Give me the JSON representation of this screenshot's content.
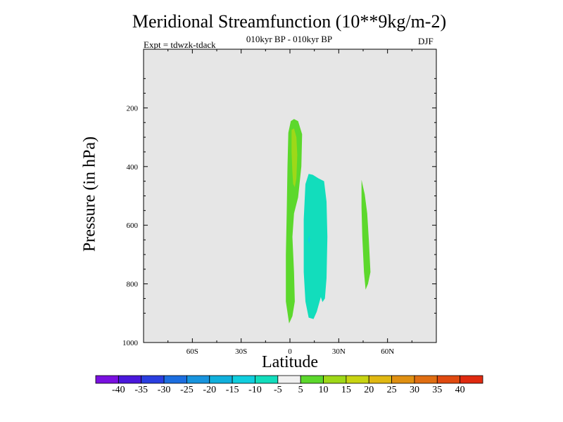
{
  "header": {
    "title": "Meridional Streamfunction (10**9kg/m-2)",
    "subtitle": "010kyr BP - 010kyr BP",
    "expt": "Expt = tdwzk-tdack",
    "season": "DJF"
  },
  "colors": {
    "background_panel": "#e6e6e6",
    "neutral": "#ffffff"
  },
  "chart_data": {
    "type": "contour",
    "title": "Meridional Streamfunction (10**9kg/m-2)",
    "subtitle": "010kyr BP - 010kyr BP",
    "xlabel": "Latitude",
    "ylabel": "Pressure (in hPa)",
    "xlim": [
      -90,
      90
    ],
    "ylim": [
      0,
      1000
    ],
    "y_inverted": true,
    "x_ticks": [
      {
        "value": -60,
        "label": "60S"
      },
      {
        "value": -30,
        "label": "30S"
      },
      {
        "value": 0,
        "label": "0"
      },
      {
        "value": 30,
        "label": "30N"
      },
      {
        "value": 60,
        "label": "60N"
      }
    ],
    "y_ticks": [
      {
        "value": 200,
        "label": "200"
      },
      {
        "value": 400,
        "label": "400"
      },
      {
        "value": 600,
        "label": "600"
      },
      {
        "value": 800,
        "label": "800"
      },
      {
        "value": 1000,
        "label": "1000"
      }
    ],
    "colorbar": {
      "labels": [
        "-40",
        "-35",
        "-30",
        "-25",
        "-20",
        "-15",
        "-10",
        "-5",
        "5",
        "10",
        "15",
        "20",
        "25",
        "30",
        "35",
        "40"
      ],
      "colors": [
        "#7a10e0",
        "#4a18dc",
        "#2a3ee0",
        "#1c6ee0",
        "#1894de",
        "#10b0dc",
        "#10cede",
        "#12ddbc",
        "#f0f0f0",
        "#5cd82c",
        "#9ed818",
        "#c8d412",
        "#e0b812",
        "#e09012",
        "#e06e12",
        "#e04a10",
        "#e02a10"
      ]
    },
    "regions": [
      {
        "name": "positive-equatorial-band",
        "level": "5 to 10",
        "color": "#5cd82c",
        "outline": [
          [
            -0.5,
            935
          ],
          [
            -2.5,
            860
          ],
          [
            -2.5,
            700
          ],
          [
            -2,
            560
          ],
          [
            -1.5,
            400
          ],
          [
            -1,
            285
          ],
          [
            0.5,
            245
          ],
          [
            2.5,
            238
          ],
          [
            5,
            245
          ],
          [
            7.5,
            290
          ],
          [
            7,
            400
          ],
          [
            5,
            505
          ],
          [
            2.5,
            560
          ],
          [
            1.5,
            640
          ],
          [
            2.5,
            760
          ],
          [
            3,
            860
          ],
          [
            1.5,
            910
          ]
        ]
      },
      {
        "name": "positive-core-upper",
        "level": "10 to 15",
        "color": "#9ed818",
        "outline": [
          [
            1,
            275
          ],
          [
            2.5,
            270
          ],
          [
            4,
            300
          ],
          [
            4.5,
            360
          ],
          [
            4,
            440
          ],
          [
            3,
            470
          ],
          [
            2,
            460
          ],
          [
            1.5,
            420
          ],
          [
            1,
            350
          ]
        ]
      },
      {
        "name": "negative-nh-cell",
        "level": "-10 to -5",
        "color": "#12ddbc",
        "outline": [
          [
            8.5,
            580
          ],
          [
            9.5,
            460
          ],
          [
            11.5,
            425
          ],
          [
            14,
            428
          ],
          [
            17.5,
            440
          ],
          [
            21,
            450
          ],
          [
            22.5,
            520
          ],
          [
            23,
            640
          ],
          [
            22.5,
            780
          ],
          [
            21.5,
            850
          ],
          [
            20,
            862
          ],
          [
            19,
            845
          ],
          [
            16.5,
            895
          ],
          [
            14.5,
            920
          ],
          [
            11.5,
            915
          ],
          [
            9.5,
            860
          ],
          [
            8.5,
            760
          ]
        ]
      },
      {
        "name": "negative-core-dot",
        "level": "-15 to -10",
        "color": "#10cede",
        "outline": [
          [
            11.2,
            650
          ],
          [
            11.8,
            635
          ],
          [
            12.4,
            650
          ],
          [
            11.8,
            665
          ]
        ]
      },
      {
        "name": "positive-nh-midlat",
        "level": "5 to 10",
        "color": "#5cd82c",
        "outline": [
          [
            44,
            445
          ],
          [
            46,
            495
          ],
          [
            47.5,
            560
          ],
          [
            48.5,
            650
          ],
          [
            49.5,
            760
          ],
          [
            48,
            800
          ],
          [
            46.5,
            820
          ],
          [
            45.5,
            760
          ],
          [
            44.5,
            640
          ],
          [
            44,
            540
          ]
        ]
      }
    ]
  }
}
